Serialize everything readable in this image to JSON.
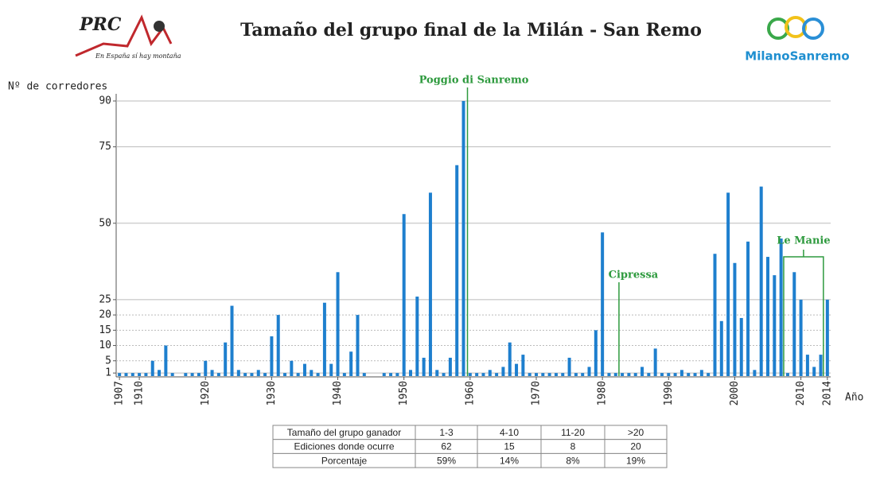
{
  "logos": {
    "left": {
      "name": "PRC",
      "motto": "En España sí hay montaña"
    },
    "right": {
      "name": "MilanoSanremo"
    }
  },
  "chart_data": {
    "type": "bar",
    "title": "Tamaño del grupo final de la Milán - San Remo",
    "y_label": "Nº de corredores",
    "x_label": "Año",
    "color": "#1e7fce",
    "x": [
      1907,
      1908,
      1909,
      1910,
      1911,
      1912,
      1913,
      1914,
      1915,
      1916,
      1917,
      1918,
      1919,
      1920,
      1921,
      1922,
      1923,
      1924,
      1925,
      1926,
      1927,
      1928,
      1929,
      1930,
      1931,
      1932,
      1933,
      1934,
      1935,
      1936,
      1937,
      1938,
      1939,
      1940,
      1941,
      1942,
      1943,
      1944,
      1945,
      1946,
      1947,
      1948,
      1949,
      1950,
      1951,
      1952,
      1953,
      1954,
      1955,
      1956,
      1957,
      1958,
      1959,
      1960,
      1961,
      1962,
      1963,
      1964,
      1965,
      1966,
      1967,
      1968,
      1969,
      1970,
      1971,
      1972,
      1973,
      1974,
      1975,
      1976,
      1977,
      1978,
      1979,
      1980,
      1981,
      1982,
      1983,
      1984,
      1985,
      1986,
      1987,
      1988,
      1989,
      1990,
      1991,
      1992,
      1993,
      1994,
      1995,
      1996,
      1997,
      1998,
      1999,
      2000,
      2001,
      2002,
      2003,
      2004,
      2005,
      2006,
      2007,
      2008,
      2009,
      2010,
      2011,
      2012,
      2013,
      2014
    ],
    "values": [
      1,
      1,
      1,
      1,
      1,
      5,
      2,
      10,
      1,
      null,
      1,
      1,
      1,
      5,
      2,
      1,
      11,
      23,
      2,
      1,
      1,
      2,
      1,
      13,
      20,
      1,
      5,
      1,
      4,
      2,
      1,
      24,
      4,
      34,
      1,
      8,
      20,
      1,
      null,
      null,
      1,
      1,
      1,
      53,
      2,
      26,
      6,
      60,
      2,
      1,
      6,
      69,
      90,
      1,
      1,
      1,
      2,
      1,
      3,
      11,
      4,
      7,
      1,
      1,
      1,
      1,
      1,
      1,
      6,
      1,
      1,
      3,
      15,
      47,
      1,
      1,
      1,
      1,
      1,
      3,
      1,
      9,
      1,
      1,
      1,
      2,
      1,
      1,
      2,
      1,
      40,
      18,
      60,
      37,
      19,
      44,
      2,
      62,
      39,
      33,
      45,
      1,
      34,
      25,
      7,
      3,
      7,
      25
    ],
    "xlim": [
      1906.5,
      2014.5
    ],
    "xticks": [
      1907,
      1910,
      1920,
      1930,
      1940,
      1950,
      1960,
      1970,
      1980,
      1990,
      2000,
      2010,
      2014
    ],
    "ylim": [
      0,
      90
    ],
    "yticks": [
      1,
      5,
      10,
      15,
      20,
      25,
      50,
      75,
      90
    ],
    "grid": true,
    "annotations": [
      {
        "text": "Poggio di Sanremo",
        "x": 1959.6
      },
      {
        "text": "Cipressa",
        "x": 1982.5
      },
      {
        "text": "Le Manie",
        "x": 2007.4,
        "x_end": 2013.4
      }
    ]
  },
  "table": {
    "header": [
      "Tamaño del grupo ganador",
      "1-3",
      "4-10",
      "11-20",
      ">20"
    ],
    "rows": [
      [
        "Ediciones donde ocurre",
        "62",
        "15",
        "8",
        "20"
      ],
      [
        "Porcentaje",
        "59%",
        "14%",
        "8%",
        "19%"
      ]
    ]
  }
}
